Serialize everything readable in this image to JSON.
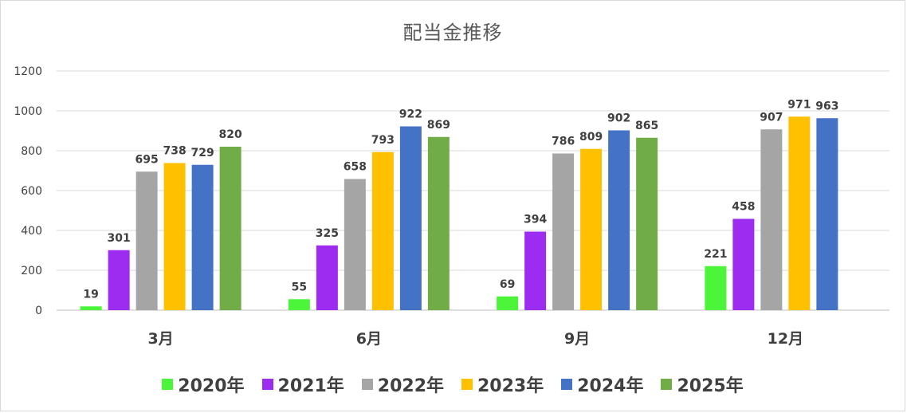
{
  "chart_data": {
    "type": "bar",
    "title": "配当金推移",
    "xlabel": "",
    "ylabel": "",
    "categories": [
      "3月",
      "6月",
      "9月",
      "12月"
    ],
    "ylim": [
      0,
      1200
    ],
    "yticks": [
      0,
      200,
      400,
      600,
      800,
      1000,
      1200
    ],
    "grid": true,
    "legend_position": "bottom",
    "series": [
      {
        "name": "2020年",
        "color": "#4cf53a",
        "values": [
          19,
          55,
          69,
          221
        ]
      },
      {
        "name": "2021年",
        "color": "#9b2cf0",
        "values": [
          301,
          325,
          394,
          458
        ]
      },
      {
        "name": "2022年",
        "color": "#a5a5a5",
        "values": [
          695,
          658,
          786,
          907
        ]
      },
      {
        "name": "2023年",
        "color": "#ffc000",
        "values": [
          738,
          793,
          809,
          971
        ]
      },
      {
        "name": "2024年",
        "color": "#4472c4",
        "values": [
          729,
          922,
          902,
          963
        ]
      },
      {
        "name": "2025年",
        "color": "#70ad47",
        "values": [
          820,
          869,
          865,
          null
        ]
      }
    ]
  }
}
